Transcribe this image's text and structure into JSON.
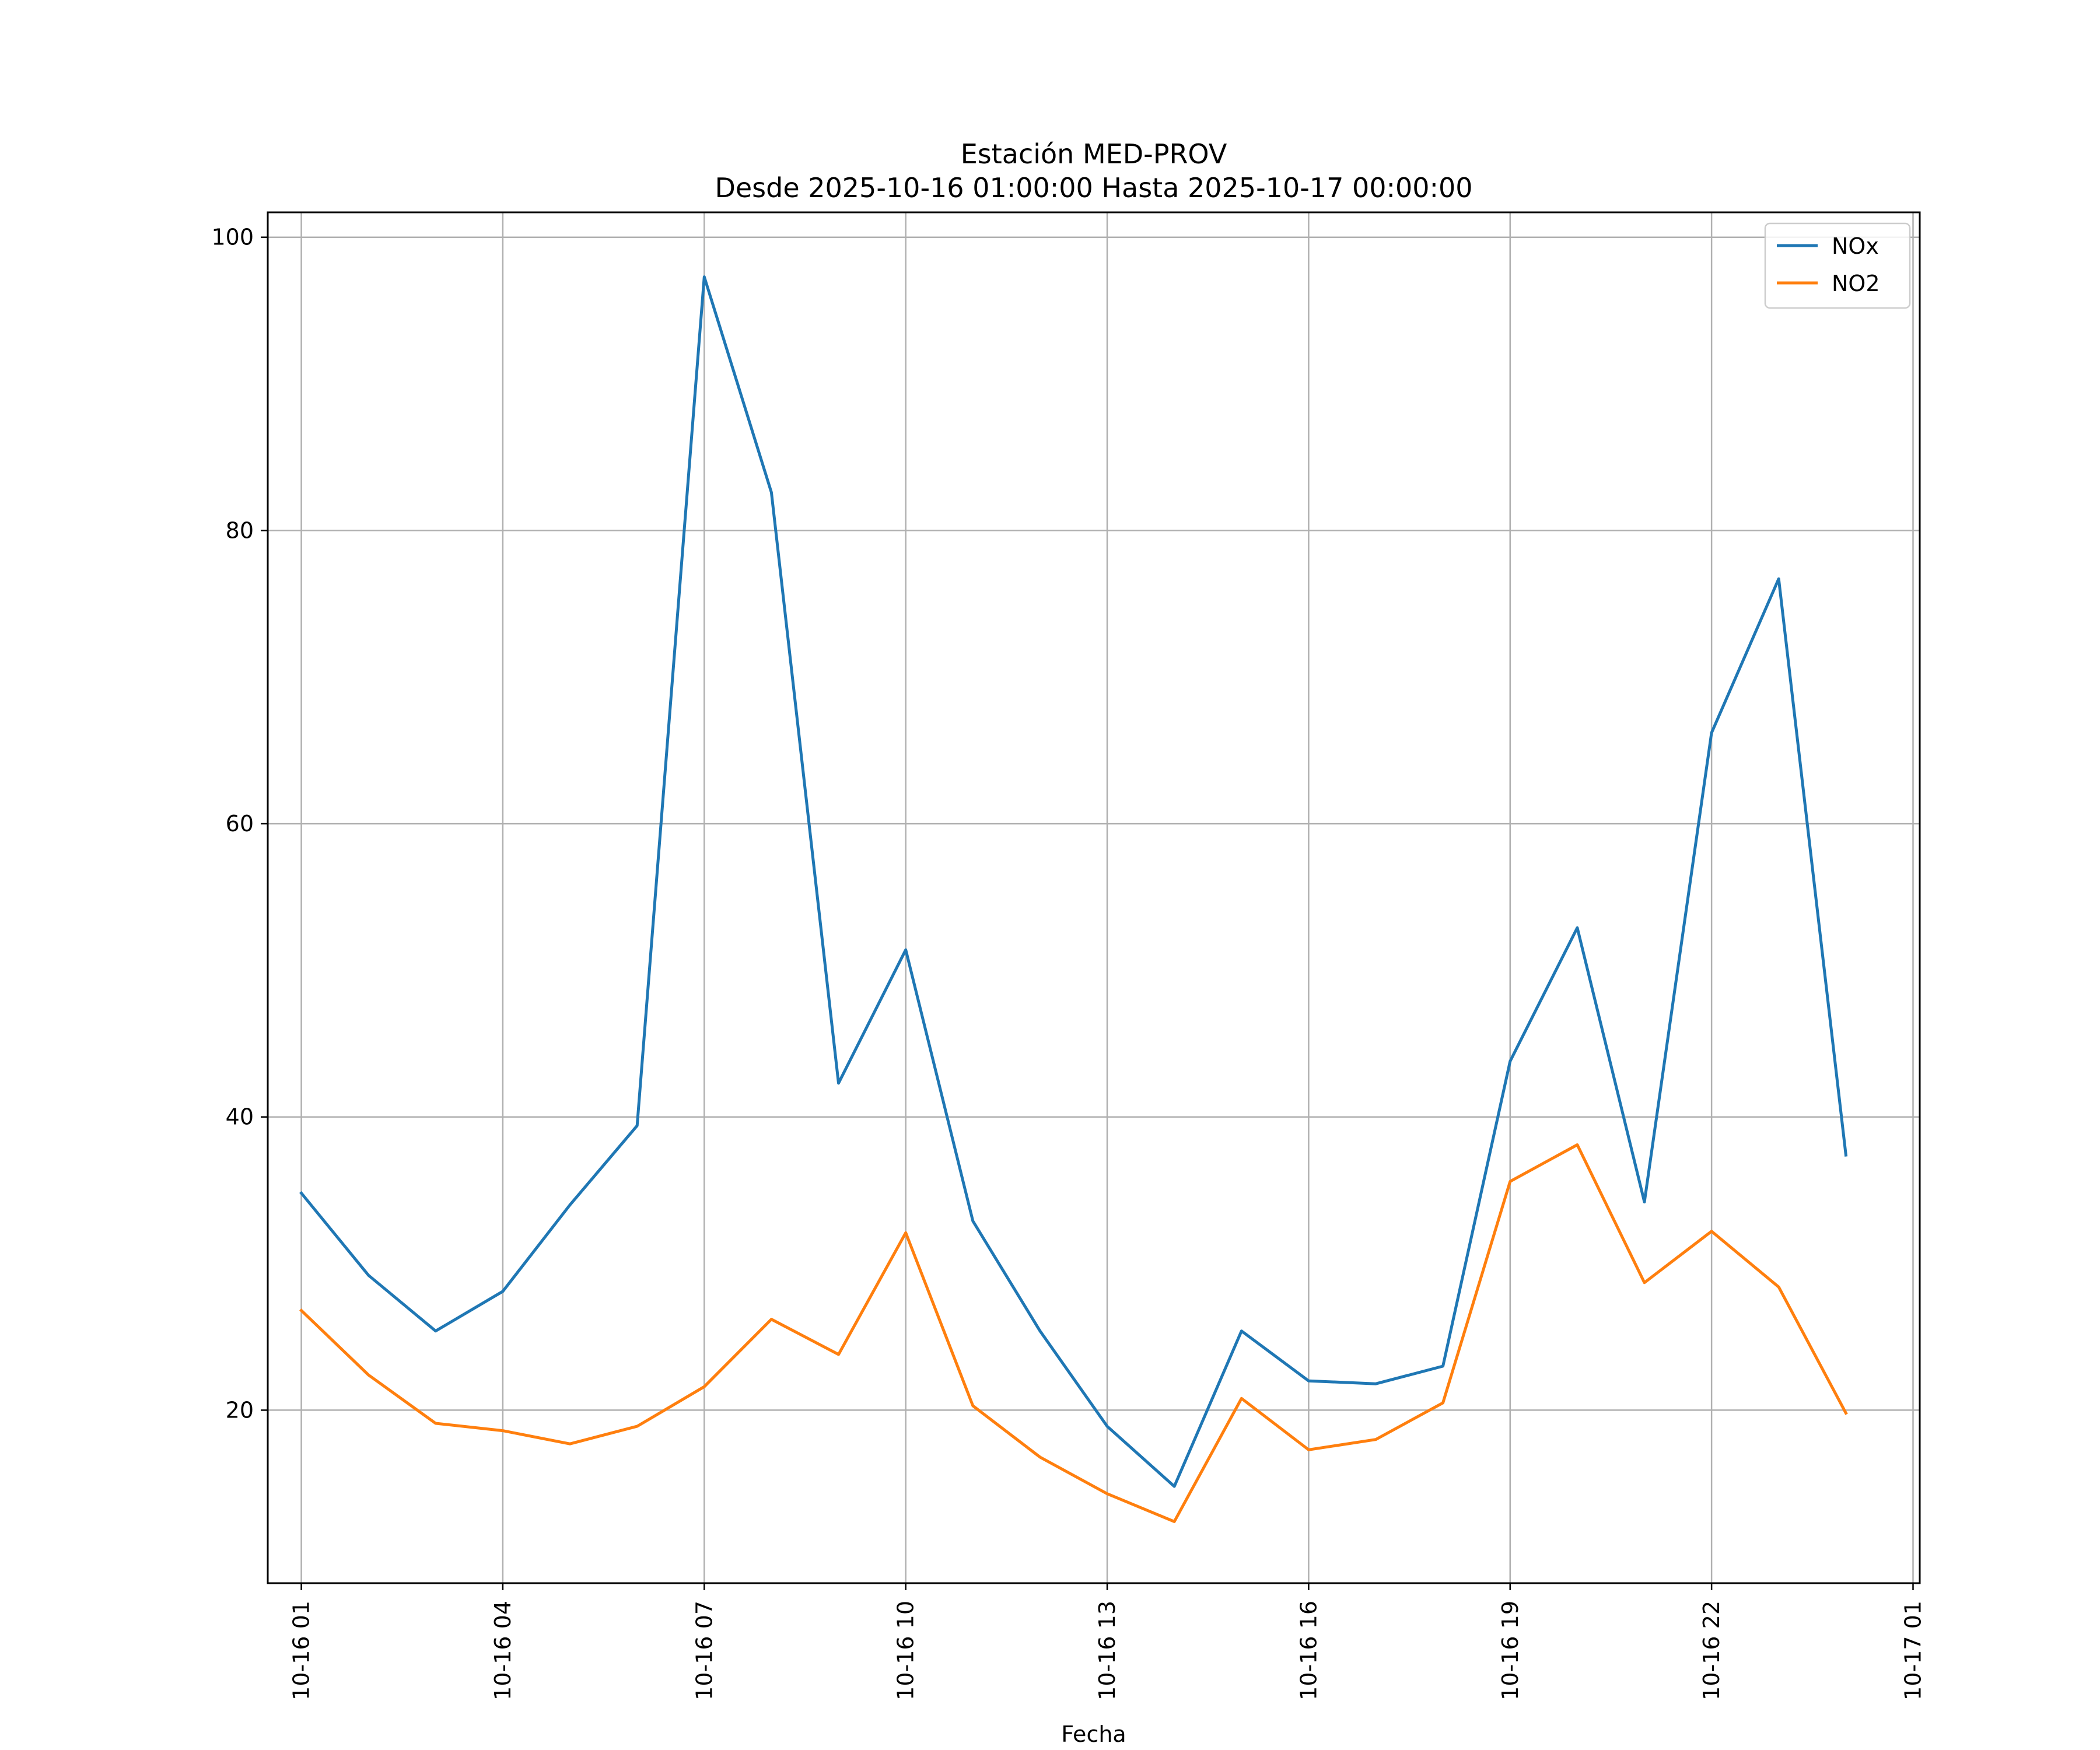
{
  "chart_data": {
    "type": "line",
    "title": "Estación MED-PROV",
    "subtitle": "Desde 2025-10-16 01:00:00 Hasta 2025-10-17 00:00:00",
    "xlabel": "Fecha",
    "ylabel": "",
    "x": [
      "10-16 01",
      "10-16 02",
      "10-16 03",
      "10-16 04",
      "10-16 05",
      "10-16 06",
      "10-16 07",
      "10-16 08",
      "10-16 09",
      "10-16 10",
      "10-16 11",
      "10-16 12",
      "10-16 13",
      "10-16 14",
      "10-16 15",
      "10-16 16",
      "10-16 17",
      "10-16 18",
      "10-16 19",
      "10-16 20",
      "10-16 21",
      "10-16 22",
      "10-16 23",
      "10-17 00"
    ],
    "x_hours": [
      0,
      1,
      2,
      3,
      4,
      5,
      6,
      7,
      8,
      9,
      10,
      11,
      12,
      13,
      14,
      15,
      16,
      17,
      18,
      19,
      20,
      21,
      22,
      23
    ],
    "xlim": [
      -0.5,
      24.1
    ],
    "xticks": [
      {
        "hour": 0,
        "label": "10-16 01"
      },
      {
        "hour": 3,
        "label": "10-16 04"
      },
      {
        "hour": 6,
        "label": "10-16 07"
      },
      {
        "hour": 9,
        "label": "10-16 10"
      },
      {
        "hour": 12,
        "label": "10-16 13"
      },
      {
        "hour": 15,
        "label": "10-16 16"
      },
      {
        "hour": 18,
        "label": "10-16 19"
      },
      {
        "hour": 21,
        "label": "10-16 22"
      },
      {
        "hour": 24,
        "label": "10-17 01"
      }
    ],
    "ylim": [
      8.2,
      101.7
    ],
    "yticks": [
      20,
      40,
      60,
      80,
      100
    ],
    "grid": true,
    "legend_position": "top-right",
    "series": [
      {
        "name": "NOx",
        "color": "#1f77b4",
        "values": [
          34.8,
          29.2,
          25.4,
          28.1,
          34.0,
          39.4,
          97.3,
          82.6,
          42.3,
          51.4,
          32.9,
          25.4,
          18.9,
          14.8,
          25.4,
          22.0,
          21.8,
          23.0,
          43.8,
          52.9,
          34.2,
          66.2,
          76.7,
          37.4
        ]
      },
      {
        "name": "NO2",
        "color": "#ff7f0e",
        "values": [
          26.8,
          22.4,
          19.1,
          18.6,
          17.7,
          18.9,
          21.6,
          26.2,
          23.8,
          32.1,
          20.3,
          16.8,
          14.3,
          12.4,
          20.8,
          17.3,
          18.0,
          20.5,
          35.6,
          38.1,
          28.7,
          32.2,
          28.4,
          19.8
        ]
      }
    ]
  }
}
